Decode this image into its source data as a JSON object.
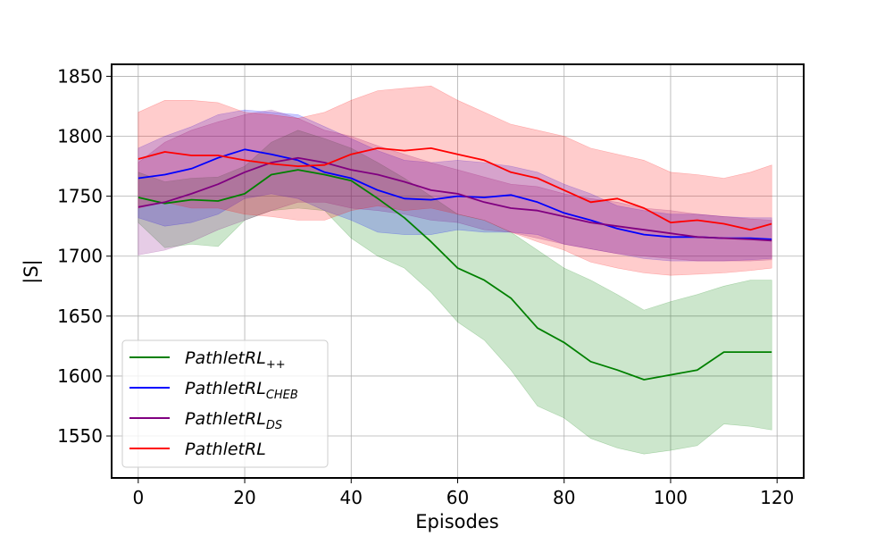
{
  "chart_data": {
    "type": "line",
    "title": "",
    "xlabel": "Episodes",
    "ylabel": "|S|",
    "xlim": [
      -5,
      125
    ],
    "ylim": [
      1515,
      1860
    ],
    "xticks": [
      0,
      20,
      40,
      60,
      80,
      100,
      120
    ],
    "yticks": [
      1550,
      1600,
      1650,
      1700,
      1750,
      1800,
      1850
    ],
    "grid": true,
    "legend_position": "lower-left",
    "band": "shaded region shows variability (approx. +/- 1 std)",
    "series": [
      {
        "name": "PathletRL++",
        "base": "PathletRL",
        "sub": "++",
        "color": "#008000",
        "x": [
          0,
          5,
          10,
          15,
          20,
          25,
          30,
          35,
          40,
          45,
          50,
          55,
          60,
          65,
          70,
          75,
          80,
          85,
          90,
          95,
          100,
          105,
          110,
          115,
          119
        ],
        "mean": [
          1749,
          1744,
          1747,
          1746,
          1752,
          1768,
          1772,
          1768,
          1763,
          1748,
          1732,
          1712,
          1690,
          1680,
          1665,
          1640,
          1628,
          1612,
          1605,
          1597,
          1601,
          1605,
          1620,
          1620,
          1620
        ],
        "upper": [
          1770,
          1762,
          1765,
          1766,
          1775,
          1795,
          1805,
          1798,
          1790,
          1778,
          1765,
          1750,
          1735,
          1730,
          1720,
          1705,
          1690,
          1680,
          1668,
          1655,
          1662,
          1668,
          1675,
          1680,
          1680
        ],
        "lower": [
          1728,
          1707,
          1710,
          1708,
          1730,
          1738,
          1740,
          1738,
          1715,
          1700,
          1690,
          1670,
          1645,
          1630,
          1605,
          1575,
          1565,
          1548,
          1540,
          1535,
          1538,
          1542,
          1560,
          1558,
          1555
        ]
      },
      {
        "name": "PathletRL_CHEB",
        "base": "PathletRL",
        "sub": "CHEB",
        "color": "#0000ff",
        "x": [
          0,
          5,
          10,
          15,
          20,
          25,
          30,
          35,
          40,
          45,
          50,
          55,
          60,
          65,
          70,
          75,
          80,
          85,
          90,
          95,
          100,
          105,
          110,
          115,
          119
        ],
        "mean": [
          1765,
          1768,
          1773,
          1782,
          1789,
          1785,
          1780,
          1770,
          1765,
          1755,
          1748,
          1747,
          1750,
          1749,
          1751,
          1745,
          1736,
          1730,
          1723,
          1718,
          1716,
          1716,
          1715,
          1715,
          1714
        ],
        "upper": [
          1790,
          1800,
          1808,
          1818,
          1822,
          1820,
          1818,
          1808,
          1798,
          1788,
          1780,
          1778,
          1780,
          1778,
          1775,
          1770,
          1760,
          1752,
          1742,
          1738,
          1735,
          1735,
          1733,
          1732,
          1732
        ],
        "lower": [
          1732,
          1725,
          1728,
          1735,
          1748,
          1752,
          1748,
          1738,
          1730,
          1720,
          1718,
          1718,
          1722,
          1720,
          1720,
          1718,
          1710,
          1706,
          1702,
          1698,
          1696,
          1696,
          1696,
          1697,
          1698
        ]
      },
      {
        "name": "PathletRL_DS",
        "base": "PathletRL",
        "sub": "DS",
        "color": "#800080",
        "x": [
          0,
          5,
          10,
          15,
          20,
          25,
          30,
          35,
          40,
          45,
          50,
          55,
          60,
          65,
          70,
          75,
          80,
          85,
          90,
          95,
          100,
          105,
          110,
          115,
          119
        ],
        "mean": [
          1741,
          1745,
          1752,
          1760,
          1770,
          1778,
          1782,
          1778,
          1772,
          1768,
          1762,
          1755,
          1752,
          1745,
          1740,
          1738,
          1733,
          1728,
          1725,
          1722,
          1719,
          1716,
          1715,
          1714,
          1713
        ],
        "upper": [
          1778,
          1795,
          1805,
          1812,
          1818,
          1822,
          1815,
          1805,
          1800,
          1792,
          1785,
          1778,
          1772,
          1766,
          1760,
          1758,
          1752,
          1748,
          1745,
          1740,
          1738,
          1735,
          1733,
          1731,
          1730
        ],
        "lower": [
          1701,
          1705,
          1712,
          1722,
          1730,
          1738,
          1745,
          1745,
          1740,
          1738,
          1735,
          1730,
          1728,
          1722,
          1720,
          1715,
          1710,
          1706,
          1702,
          1700,
          1698,
          1696,
          1696,
          1696,
          1697
        ]
      },
      {
        "name": "PathletRL",
        "base": "PathletRL",
        "sub": "",
        "color": "#ff0000",
        "x": [
          0,
          5,
          10,
          15,
          20,
          25,
          30,
          35,
          40,
          45,
          50,
          55,
          60,
          65,
          70,
          75,
          80,
          85,
          90,
          95,
          100,
          105,
          110,
          115,
          119
        ],
        "mean": [
          1781,
          1787,
          1784,
          1784,
          1780,
          1777,
          1775,
          1776,
          1785,
          1790,
          1788,
          1790,
          1785,
          1780,
          1770,
          1765,
          1755,
          1745,
          1748,
          1740,
          1728,
          1730,
          1727,
          1722,
          1727
        ],
        "upper": [
          1820,
          1830,
          1830,
          1828,
          1820,
          1818,
          1815,
          1820,
          1830,
          1838,
          1840,
          1842,
          1830,
          1820,
          1810,
          1805,
          1800,
          1790,
          1785,
          1780,
          1770,
          1768,
          1765,
          1770,
          1776
        ],
        "lower": [
          1740,
          1745,
          1740,
          1740,
          1735,
          1733,
          1730,
          1730,
          1738,
          1742,
          1738,
          1740,
          1735,
          1730,
          1720,
          1712,
          1705,
          1695,
          1690,
          1686,
          1684,
          1685,
          1686,
          1688,
          1690
        ]
      }
    ]
  }
}
